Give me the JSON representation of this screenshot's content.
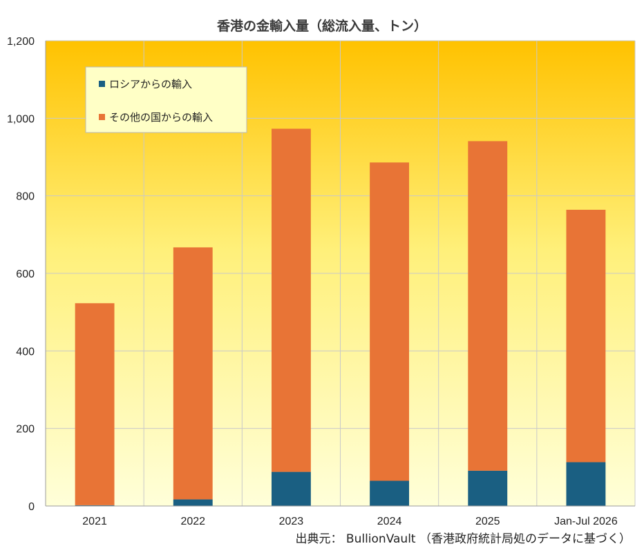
{
  "chart_data": {
    "type": "bar",
    "stacked": true,
    "title": "香港の金輸入量（総流入量、トン）",
    "categories": [
      "2021",
      "2022",
      "2023",
      "2024",
      "2025",
      "Jan-Jul 2026"
    ],
    "series": [
      {
        "name": "ロシアからの輸入",
        "values": [
          2,
          17,
          88,
          65,
          91,
          113
        ],
        "color": "#1a5f82"
      },
      {
        "name": "その他の国からの輸入",
        "values": [
          521,
          650,
          885,
          821,
          850,
          651
        ],
        "color": "#e87436"
      }
    ],
    "ylim": [
      0,
      1200
    ],
    "yticks": [
      "0",
      "200",
      "400",
      "600",
      "800",
      "1,000",
      "1,200"
    ],
    "grid": true,
    "legend_position": "top-left",
    "background": "yellow-to-orange vertical gradient",
    "gradient_colors": {
      "top": "#ffc200",
      "bottom": "#ffffd9"
    },
    "source": "出典元： BullionVault （香港政府統計局処のデータに基づく）"
  }
}
